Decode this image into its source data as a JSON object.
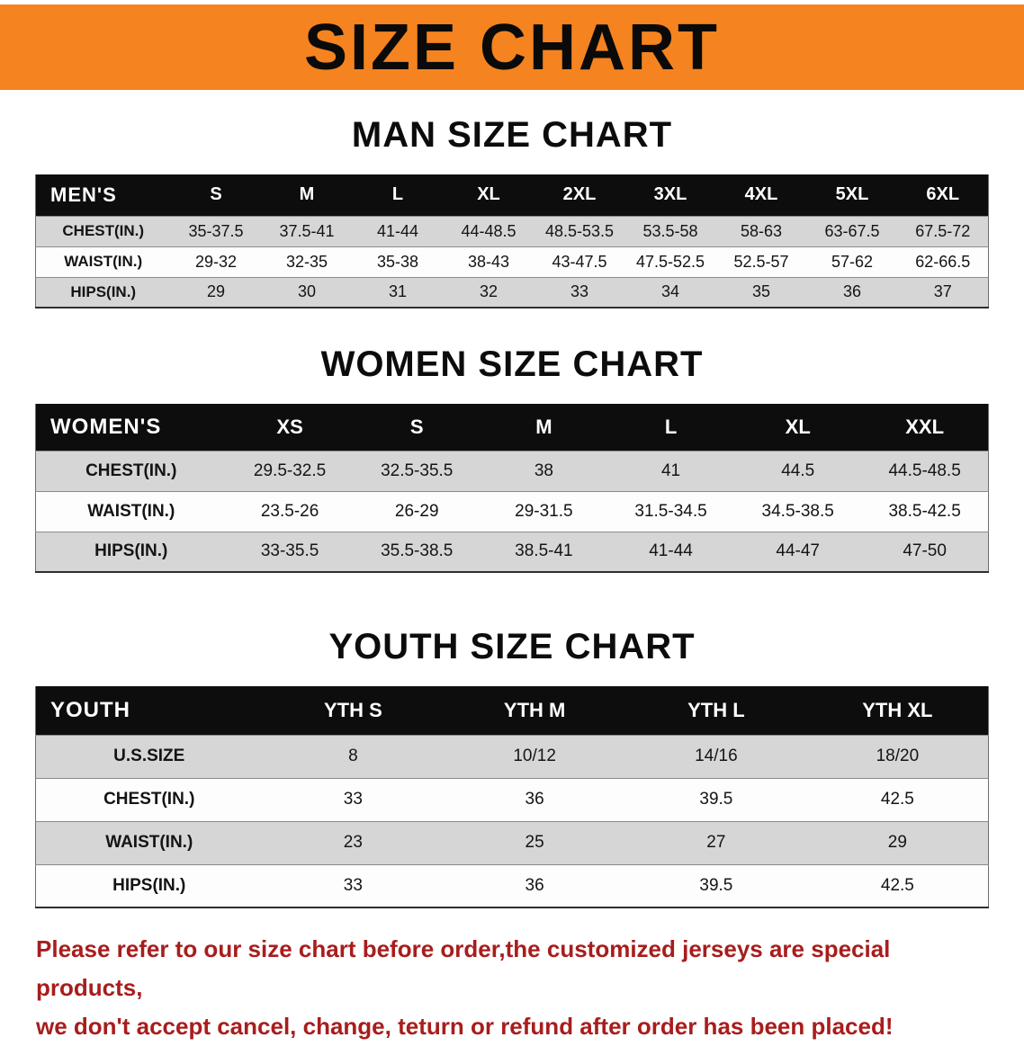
{
  "banner": {
    "title": "SIZE CHART",
    "bg_color": "#F5831F"
  },
  "sections": [
    {
      "id": "men",
      "heading": "MAN SIZE CHART",
      "table": {
        "header": [
          "MEN'S",
          "S",
          "M",
          "L",
          "XL",
          "2XL",
          "3XL",
          "4XL",
          "5XL",
          "6XL"
        ],
        "rows": [
          {
            "label": "CHEST(IN.)",
            "values": [
              "35-37.5",
              "37.5-41",
              "41-44",
              "44-48.5",
              "48.5-53.5",
              "53.5-58",
              "58-63",
              "63-67.5",
              "67.5-72"
            ]
          },
          {
            "label": "WAIST(IN.)",
            "values": [
              "29-32",
              "32-35",
              "35-38",
              "38-43",
              "43-47.5",
              "47.5-52.5",
              "52.5-57",
              "57-62",
              "62-66.5"
            ]
          },
          {
            "label": "HIPS(IN.)",
            "values": [
              "29",
              "30",
              "31",
              "32",
              "33",
              "34",
              "35",
              "36",
              "37"
            ]
          }
        ]
      }
    },
    {
      "id": "women",
      "heading": "WOMEN SIZE CHART",
      "table": {
        "header": [
          "WOMEN'S",
          "XS",
          "S",
          "M",
          "L",
          "XL",
          "XXL"
        ],
        "rows": [
          {
            "label": "CHEST(IN.)",
            "values": [
              "29.5-32.5",
              "32.5-35.5",
              "38",
              "41",
              "44.5",
              "44.5-48.5"
            ]
          },
          {
            "label": "WAIST(IN.)",
            "values": [
              "23.5-26",
              "26-29",
              "29-31.5",
              "31.5-34.5",
              "34.5-38.5",
              "38.5-42.5"
            ]
          },
          {
            "label": "HIPS(IN.)",
            "values": [
              "33-35.5",
              "35.5-38.5",
              "38.5-41",
              "41-44",
              "44-47",
              "47-50"
            ]
          }
        ]
      }
    },
    {
      "id": "youth",
      "heading": "YOUTH SIZE CHART",
      "table": {
        "header": [
          "YOUTH",
          "YTH S",
          "YTH M",
          "YTH L",
          "YTH XL"
        ],
        "rows": [
          {
            "label": "U.S.SIZE",
            "values": [
              "8",
              "10/12",
              "14/16",
              "18/20"
            ]
          },
          {
            "label": "CHEST(IN.)",
            "values": [
              "33",
              "36",
              "39.5",
              "42.5"
            ]
          },
          {
            "label": "WAIST(IN.)",
            "values": [
              "23",
              "25",
              "27",
              "29"
            ]
          },
          {
            "label": "HIPS(IN.)",
            "values": [
              "33",
              "36",
              "39.5",
              "42.5"
            ]
          }
        ]
      }
    }
  ],
  "footer": {
    "lines": [
      "Please refer to our size chart before order,the customized jerseys are special products,",
      "we don't accept cancel, change, teturn or refund after order has been placed!"
    ],
    "text_color": "#A81D1D"
  }
}
